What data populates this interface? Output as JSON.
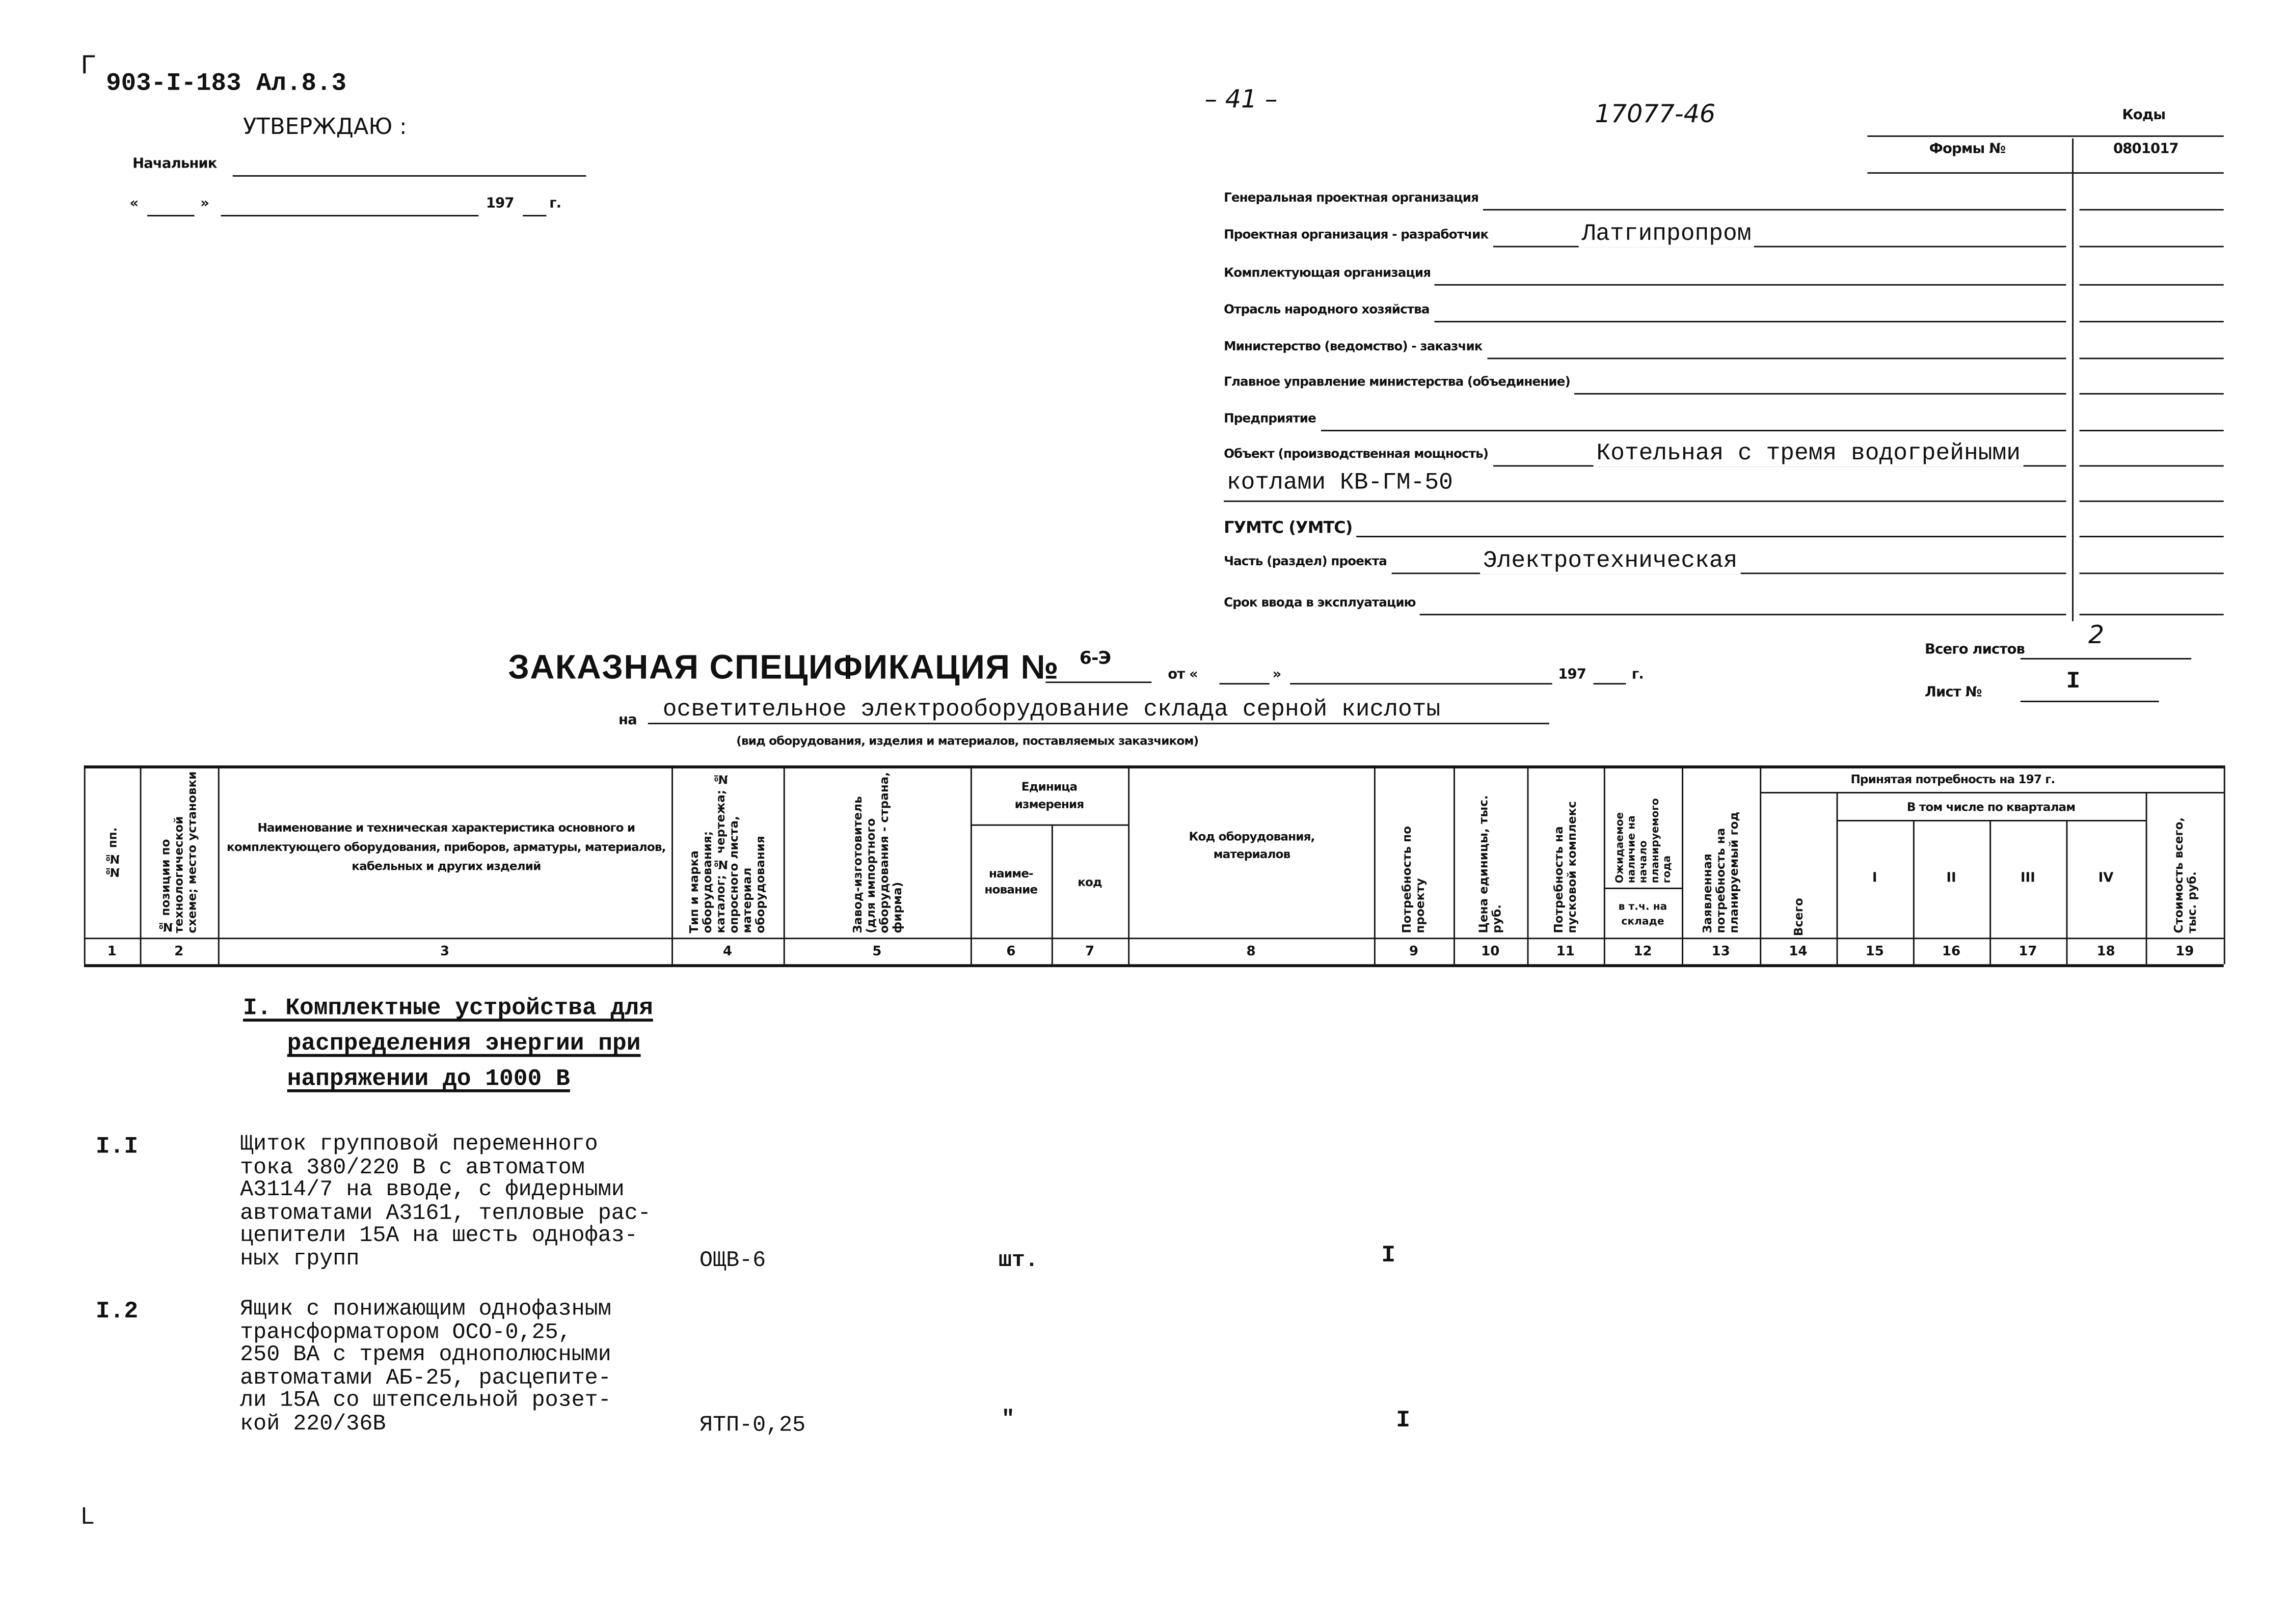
{
  "corner_marks": {
    "top_left": "Г",
    "bottom_left": "L"
  },
  "doc_code": "903-I-183  Ал.8.3",
  "approval": {
    "title": "УТВЕРЖДАЮ :",
    "chief_label": "Начальник",
    "date_open": "«",
    "date_close": "»",
    "year": "197",
    "year_suffix": "г."
  },
  "page_number": "– 41 –",
  "archive_number": "17077-46",
  "codes": {
    "header": "Коды",
    "form_label": "Формы №",
    "form_code": "0801017"
  },
  "fields": [
    {
      "label": "Генеральная проектная организация",
      "value": ""
    },
    {
      "label": "Проектная организация - разработчик",
      "value": "Латгипропром"
    },
    {
      "label": "Комплектующая организация",
      "value": ""
    },
    {
      "label": "Отрасль народного хозяйства",
      "value": ""
    },
    {
      "label": "Министерство (ведомство) - заказчик",
      "value": ""
    },
    {
      "label": "Главное управление министерства (объединение)",
      "value": ""
    },
    {
      "label": "Предприятие",
      "value": ""
    },
    {
      "label": "Объект (производственная мощность)",
      "value": "Котельная с тремя водогрейными",
      "value2": "котлами КВ-ГМ-50"
    },
    {
      "label": "ГУМТС (УМТС)",
      "value": ""
    },
    {
      "label": "Часть (раздел) проекта",
      "value": "Электротехническая"
    },
    {
      "label": "Срок ввода в эксплуатацию",
      "value": ""
    }
  ],
  "spec": {
    "title": "ЗАКАЗНАЯ СПЕЦИФИКАЦИЯ №",
    "number": "6-Э",
    "from": "от «",
    "from_close": "»",
    "year": "197",
    "year_suffix": "г.",
    "on": "на",
    "subject": "осветительное электрооборудование склада серной кислоты",
    "subject_hint": "(вид оборудования, изделия и материалов, поставляемых заказчиком)"
  },
  "sheets": {
    "total_label": "Всего листов",
    "total": "2",
    "sheet_label": "Лист №",
    "sheet": "I"
  },
  "table": {
    "headers": {
      "c1": "№№ пп.",
      "c2": "№ позиции по технологической схеме; место установки",
      "c3": "Наименование и техническая характеристика основного и комплектующего оборудования, приборов, арматуры, материалов, кабельных и других изделий",
      "c4": "Тип и марка оборудования; каталог; № чертежа; № опросного листа, материал оборудования",
      "c5": "Завод-изготовитель (для импортного оборудования - страна, фирма)",
      "unit": "Единица измерения",
      "c6": "наиме- нование",
      "c7": "код",
      "c8": "Код оборудования, материалов",
      "c9": "Потребность по проекту",
      "c10": "Цена единицы, тыс. руб.",
      "c11": "Потребность на пусковой комплекс",
      "c12a": "Ожидаемое наличие на начало планируемого года",
      "c12b": "в т.ч. на складе",
      "c13": "Заявленная потребность на планируемый год",
      "accepted": "Принятая потребность на 197   г.",
      "c14": "Всего",
      "quarters": "В том числе по кварталам",
      "c15": "I",
      "c16": "II",
      "c17": "III",
      "c18": "IV",
      "c19": "Стоимость всего, тыс. руб."
    },
    "col_numbers": [
      "1",
      "2",
      "3",
      "4",
      "5",
      "6",
      "7",
      "8",
      "9",
      "10",
      "11",
      "12",
      "13",
      "14",
      "15",
      "16",
      "17",
      "18",
      "19"
    ]
  },
  "section": {
    "line1": "I. Комплектные устройства для",
    "line2": "распределения энергии при",
    "line3": "напряжении до 1000 В"
  },
  "rows": [
    {
      "pos": "I.I",
      "desc": [
        "Щиток групповой переменного",
        "тока 380/220 В с автоматом",
        "А3114/7 на вводе, с фидерными",
        "автоматами А3161, тепловые рас-",
        "цепители 15А на шесть однофаз-",
        "ных групп"
      ],
      "type": "ОЩВ-6",
      "unit": "шт.",
      "qty": "I"
    },
    {
      "pos": "I.2",
      "desc": [
        "Ящик с понижающим однофазным",
        "трансформатором ОСО-0,25,",
        "250 ВА с тремя однополюсными",
        "автоматами АБ-25, расцепите-",
        "ли 15А со штепсельной розет-",
        "кой 220/36В"
      ],
      "type": "ЯТП-0,25",
      "unit": "\"",
      "qty": "I"
    }
  ]
}
